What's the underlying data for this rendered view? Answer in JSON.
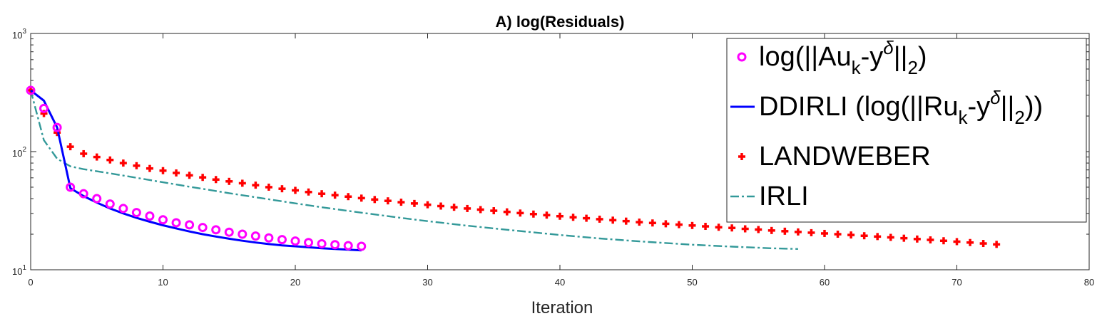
{
  "chart_data": {
    "type": "line",
    "title": "A) log(Residuals)",
    "xlabel": "Iteration",
    "ylabel": "",
    "xlim": [
      0,
      80
    ],
    "ylim": [
      10,
      1000
    ],
    "yscale": "log",
    "grid": false,
    "legend_position": "top-right",
    "x_ticks": [
      "0",
      "10",
      "20",
      "30",
      "40",
      "50",
      "60",
      "70",
      "80"
    ],
    "y_ticks": [
      {
        "base": "10",
        "exp": "1"
      },
      {
        "base": "10",
        "exp": "2"
      },
      {
        "base": "10",
        "exp": "3"
      }
    ],
    "legend": [
      {
        "key": "A",
        "parts": [
          [
            "n",
            "log(||Au"
          ],
          [
            "sub",
            "k"
          ],
          [
            "n",
            "-y"
          ],
          [
            "sup",
            "δ"
          ],
          [
            "n",
            "||"
          ],
          [
            "sub",
            "2"
          ],
          [
            "n",
            ")"
          ]
        ]
      },
      {
        "key": "B",
        "parts": [
          [
            "n",
            "DDIRLI (log(||Ru"
          ],
          [
            "sub",
            "k"
          ],
          [
            "n",
            "-y"
          ],
          [
            "sup",
            "δ"
          ],
          [
            "n",
            "||"
          ],
          [
            "sub",
            "2"
          ],
          [
            "n",
            "))"
          ]
        ]
      },
      {
        "key": "C",
        "parts": [
          [
            "n",
            "LANDWEBER"
          ]
        ]
      },
      {
        "key": "D",
        "parts": [
          [
            "n",
            "IRLI"
          ]
        ]
      }
    ],
    "series": [
      {
        "key": "A",
        "style": "circle-markers",
        "color": "#ff00ff",
        "x": [
          0,
          1,
          2,
          3,
          4,
          5,
          6,
          7,
          8,
          9,
          10,
          11,
          12,
          13,
          14,
          15,
          16,
          17,
          18,
          19,
          20,
          21,
          22,
          23,
          24,
          25
        ],
        "y": [
          330,
          232,
          160,
          50,
          44,
          40,
          36,
          33,
          30.5,
          28.5,
          26.5,
          25,
          24,
          22.8,
          21.8,
          20.8,
          20,
          19.3,
          18.6,
          18,
          17.5,
          17,
          16.6,
          16.3,
          16,
          15.8
        ]
      },
      {
        "key": "B",
        "style": "solid",
        "color": "#0000ff",
        "x": [
          0,
          1,
          2,
          3,
          4,
          5,
          6,
          7,
          8,
          9,
          10,
          11,
          12,
          13,
          14,
          15,
          16,
          17,
          18,
          19,
          20,
          21,
          22,
          23,
          24,
          25
        ],
        "y": [
          330,
          270,
          160,
          49,
          42,
          37,
          33,
          30,
          27.5,
          25.5,
          23.8,
          22.4,
          21.1,
          20,
          19.1,
          18.3,
          17.6,
          17,
          16.5,
          16.1,
          15.8,
          15.5,
          15.2,
          15,
          14.8,
          14.6
        ]
      },
      {
        "key": "C",
        "style": "plus-markers",
        "color": "#ff0000",
        "x": [
          0,
          1,
          2,
          3,
          4,
          5,
          6,
          7,
          8,
          9,
          10,
          11,
          12,
          13,
          14,
          15,
          16,
          17,
          18,
          19,
          20,
          21,
          22,
          23,
          24,
          25,
          26,
          27,
          28,
          29,
          30,
          31,
          32,
          33,
          34,
          35,
          36,
          37,
          38,
          39,
          40,
          41,
          42,
          43,
          44,
          45,
          46,
          47,
          48,
          49,
          50,
          51,
          52,
          53,
          54,
          55,
          56,
          57,
          58,
          59,
          60,
          61,
          62,
          63,
          64,
          65,
          66,
          67,
          68,
          69,
          70,
          71,
          72,
          73
        ],
        "y": [
          330,
          210,
          145,
          110,
          96,
          90,
          85,
          80,
          76,
          72,
          69,
          66,
          63,
          60.5,
          58,
          56,
          54,
          52,
          50,
          48.5,
          47,
          45.5,
          44,
          42.8,
          41.6,
          40.4,
          39.3,
          38.3,
          37.3,
          36.4,
          35.5,
          34.6,
          33.8,
          33,
          32.3,
          31.6,
          30.9,
          30.2,
          29.6,
          29,
          28.4,
          27.8,
          27.3,
          26.8,
          26.3,
          25.8,
          25.3,
          24.9,
          24.5,
          24.1,
          23.7,
          23.3,
          22.9,
          22.6,
          22.2,
          21.9,
          21.5,
          21.2,
          20.9,
          20.6,
          20.3,
          20,
          19.7,
          19.4,
          19.1,
          18.8,
          18.5,
          18.2,
          17.9,
          17.6,
          17.3,
          17,
          16.7,
          16.4
        ]
      },
      {
        "key": "D",
        "style": "dashdot",
        "color": "#339999",
        "x": [
          0,
          1,
          2,
          3,
          4,
          6,
          8,
          10,
          12,
          15,
          18,
          20,
          22,
          25,
          28,
          30,
          33,
          36,
          40,
          43,
          46,
          50,
          53,
          56,
          58
        ],
        "y": [
          330,
          125,
          87,
          75,
          71,
          65.5,
          60,
          55,
          50.5,
          44.5,
          39.5,
          36.5,
          33.8,
          30.4,
          27.5,
          25.8,
          23.6,
          21.8,
          19.7,
          18.4,
          17.4,
          16.3,
          15.7,
          15.2,
          15
        ]
      }
    ]
  }
}
